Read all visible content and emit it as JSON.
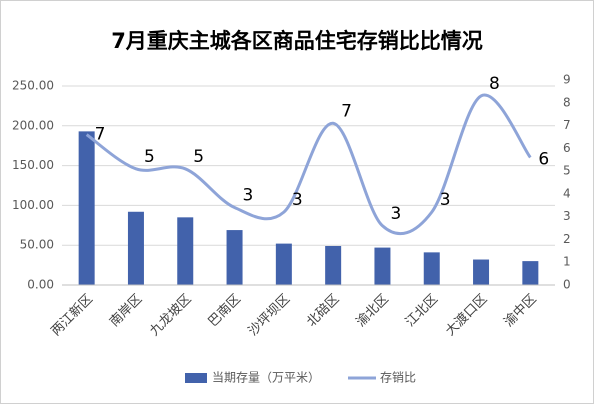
{
  "chart_data": {
    "type": "bar-line",
    "title": "7月重庆主城各区商品住宅存销比比情况",
    "categories": [
      "两江新区",
      "南岸区",
      "九龙坡区",
      "巴南区",
      "沙坪坝区",
      "北碚区",
      "渝北区",
      "江北区",
      "大渡口区",
      "渝中区"
    ],
    "series": [
      {
        "name": "当期存量（万平米）",
        "type": "bar",
        "color": "#4262ab",
        "values": [
          193,
          92,
          85,
          69,
          52,
          49,
          47,
          41,
          32,
          30
        ]
      },
      {
        "name": "存销比",
        "type": "line",
        "axis": "y2",
        "color": "#8ea4d8",
        "values": [
          6.6,
          5.1,
          5.1,
          3.4,
          3.2,
          7.1,
          2.6,
          3.2,
          8.3,
          5.6
        ],
        "value_labels": [
          "7",
          "5",
          "5",
          "3",
          "3",
          "7",
          "3",
          "3",
          "8",
          "6"
        ]
      }
    ],
    "ylim": [
      0,
      250
    ],
    "yticks": [
      {
        "value": 0,
        "label": "0.00"
      },
      {
        "value": 50,
        "label": "50.00"
      },
      {
        "value": 100,
        "label": "100.00"
      },
      {
        "value": 150,
        "label": "150.00"
      },
      {
        "value": 200,
        "label": "200.00"
      },
      {
        "value": 250,
        "label": "250.00"
      }
    ],
    "y2lim": [
      0,
      9
    ],
    "y2ticks": [
      0,
      1,
      2,
      3,
      4,
      5,
      6,
      7,
      8,
      9
    ],
    "grid": true,
    "legend": "bottom"
  }
}
